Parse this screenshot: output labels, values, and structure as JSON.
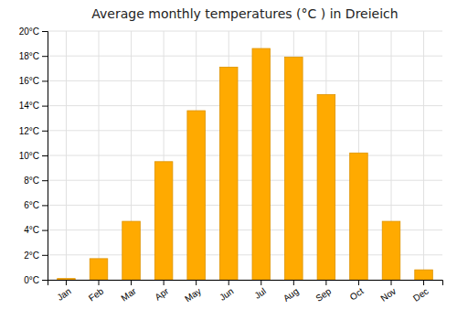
{
  "chart_data": {
    "type": "bar",
    "title": "Average monthly temperatures (°C ) in Dreieich",
    "categories": [
      "Jan",
      "Feb",
      "Mar",
      "Apr",
      "May",
      "Jun",
      "Jul",
      "Aug",
      "Sep",
      "Oct",
      "Nov",
      "Dec"
    ],
    "values": [
      0.1,
      1.7,
      4.7,
      9.5,
      13.6,
      17.1,
      18.6,
      17.9,
      14.9,
      10.2,
      4.7,
      0.8
    ],
    "color": "#FFAA00",
    "ylim": [
      0,
      20
    ],
    "yticks": [
      {
        "value": 0,
        "label": "0°C"
      },
      {
        "value": 2,
        "label": "2°C"
      },
      {
        "value": 4,
        "label": "4°C"
      },
      {
        "value": 6,
        "label": "6°C"
      },
      {
        "value": 8,
        "label": "8°C"
      },
      {
        "value": 10,
        "label": "10°C"
      },
      {
        "value": 12,
        "label": "12°C"
      },
      {
        "value": 14,
        "label": "14°C"
      },
      {
        "value": 16,
        "label": "16°C"
      },
      {
        "value": 18,
        "label": "18°C"
      },
      {
        "value": 20,
        "label": "20°C"
      }
    ],
    "grid": true
  }
}
